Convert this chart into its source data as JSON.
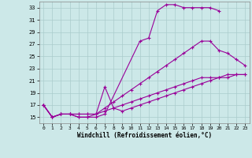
{
  "xlabel": "Windchill (Refroidissement éolien,°C)",
  "xlim": [
    -0.5,
    23.5
  ],
  "ylim": [
    14,
    34
  ],
  "xticks": [
    0,
    1,
    2,
    3,
    4,
    5,
    6,
    7,
    8,
    9,
    10,
    11,
    12,
    13,
    14,
    15,
    16,
    17,
    18,
    19,
    20,
    21,
    22,
    23
  ],
  "yticks": [
    15,
    17,
    19,
    21,
    23,
    25,
    27,
    29,
    31,
    33
  ],
  "background_color": "#cce8e8",
  "grid_color": "#aacccc",
  "line_color": "#990099",
  "line_width": 0.8,
  "marker": "+",
  "marker_size": 3,
  "curves": [
    {
      "x": [
        0,
        1,
        2,
        3,
        4,
        5,
        6,
        7,
        11,
        12,
        13,
        14,
        15,
        16,
        17,
        18,
        19,
        20
      ],
      "y": [
        17,
        15,
        15.5,
        15.5,
        15,
        15,
        15,
        15.5,
        27.5,
        28,
        32.5,
        33.5,
        33.5,
        33,
        33,
        33,
        33,
        32.5
      ]
    },
    {
      "x": [
        0,
        1,
        2,
        3,
        4,
        5,
        6,
        7,
        8,
        9,
        10,
        11,
        12,
        13,
        14,
        15,
        16,
        17,
        18,
        19,
        20,
        21,
        22,
        23
      ],
      "y": [
        17,
        15,
        15.5,
        15.5,
        15.5,
        15.5,
        15.5,
        16.5,
        17.5,
        18.5,
        19.5,
        20.5,
        21.5,
        22.5,
        23.5,
        24.5,
        25.5,
        26.5,
        27.5,
        27.5,
        26,
        25.5,
        24.5,
        23.5
      ]
    },
    {
      "x": [
        0,
        1,
        2,
        3,
        4,
        5,
        6,
        7,
        8,
        9,
        10,
        11,
        12,
        13,
        14,
        15,
        16,
        17,
        18,
        19,
        20,
        21,
        22,
        23
      ],
      "y": [
        17,
        15,
        15.5,
        15.5,
        15.5,
        15.5,
        15.5,
        16,
        16.5,
        17,
        17.5,
        18,
        18.5,
        19,
        19.5,
        20,
        20.5,
        21,
        21.5,
        21.5,
        21.5,
        21.5,
        22,
        22
      ]
    },
    {
      "x": [
        0,
        1,
        2,
        3,
        4,
        5,
        6,
        7,
        8,
        9,
        10,
        11,
        12,
        13,
        14,
        15,
        16,
        17,
        18,
        19,
        20,
        21,
        22,
        23
      ],
      "y": [
        17,
        15,
        15.5,
        15.5,
        15,
        15,
        15.5,
        20,
        16.5,
        16,
        16.5,
        17,
        17.5,
        18,
        18.5,
        19,
        19.5,
        20,
        20.5,
        21,
        21.5,
        22,
        22,
        22
      ]
    }
  ]
}
